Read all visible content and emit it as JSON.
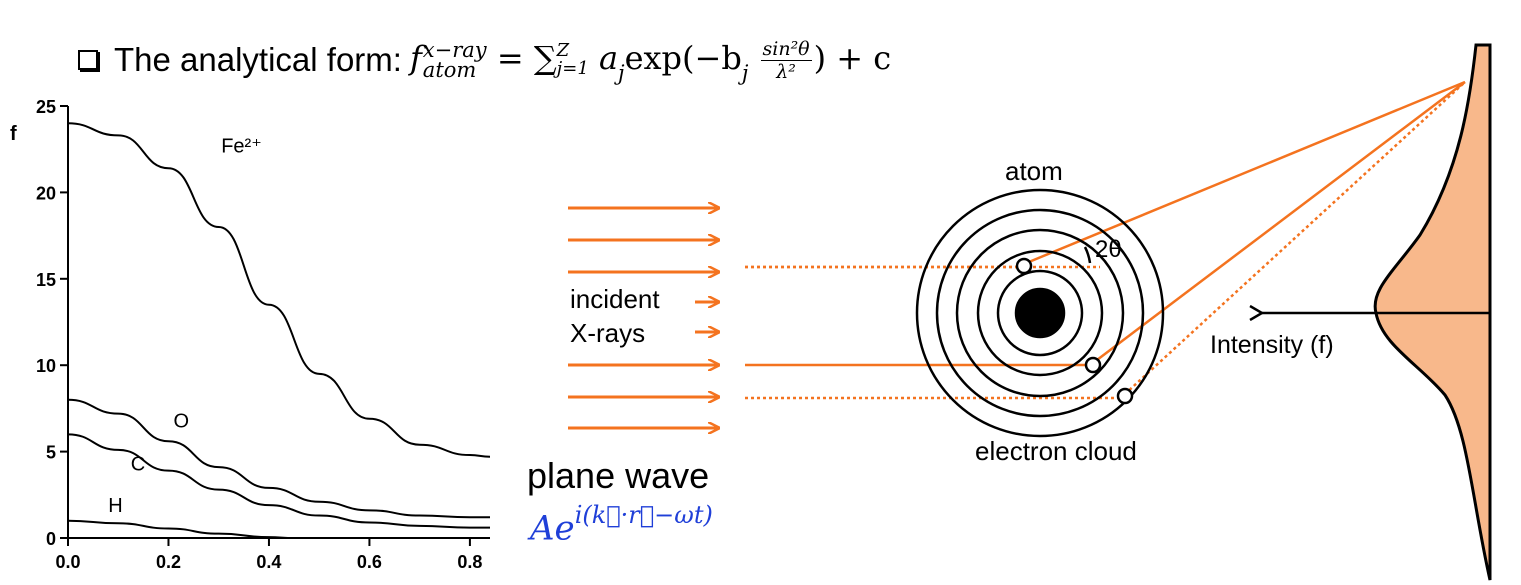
{
  "headline": {
    "text": "The analytical form:",
    "formula": {
      "f": "f",
      "superscript": "x−ray",
      "subscript": "atom",
      "equals_sum": "= ∑",
      "sum_sub": "j=1",
      "sum_sup": "Z",
      "a": "a",
      "a_sub": "j",
      "exp": "exp(−b",
      "b_sub": "j",
      "frac_num": "sin²θ",
      "frac_den": "λ²",
      "tail": ") + c"
    }
  },
  "chart_data": {
    "type": "line",
    "ylabel": "f",
    "xlabel": "",
    "xlim": [
      0,
      0.84
    ],
    "ylim": [
      0,
      25
    ],
    "x_ticks": [
      "0.0",
      "0.2",
      "0.4",
      "0.6",
      "0.8"
    ],
    "y_ticks": [
      "0",
      "5",
      "10",
      "15",
      "20",
      "25"
    ],
    "series": [
      {
        "name": "Fe²⁺",
        "x": [
          0,
          0.1,
          0.2,
          0.3,
          0.4,
          0.5,
          0.6,
          0.7,
          0.8,
          0.84
        ],
        "y": [
          24,
          23.3,
          21.4,
          18.0,
          13.5,
          9.5,
          6.9,
          5.4,
          4.8,
          4.7
        ]
      },
      {
        "name": "O",
        "x": [
          0,
          0.1,
          0.2,
          0.3,
          0.4,
          0.5,
          0.6,
          0.7,
          0.8,
          0.84
        ],
        "y": [
          8,
          7.2,
          5.6,
          4.1,
          2.9,
          2.1,
          1.6,
          1.3,
          1.2,
          1.2
        ]
      },
      {
        "name": "C",
        "x": [
          0,
          0.1,
          0.2,
          0.3,
          0.4,
          0.5,
          0.6,
          0.7,
          0.8,
          0.84
        ],
        "y": [
          6,
          5.1,
          3.9,
          2.8,
          1.9,
          1.3,
          0.9,
          0.7,
          0.6,
          0.6
        ]
      },
      {
        "name": "H",
        "x": [
          0,
          0.1,
          0.2,
          0.3,
          0.4,
          0.45
        ],
        "y": [
          1.0,
          0.85,
          0.55,
          0.25,
          0.05,
          0.0
        ]
      }
    ]
  },
  "diagram": {
    "incident_label_line1": "incident",
    "incident_label_line2": "X-rays",
    "atom_label": "atom",
    "angle_label": "2θ",
    "electron_cloud_label": "electron cloud",
    "intensity_label": "Intensity (f)",
    "plane_wave_label": "plane wave",
    "plane_wave_eq_base": "Ae",
    "plane_wave_eq_exp": "i(k⃗·r⃗−ωt)",
    "colors": {
      "ray": "#f4731f",
      "detector_fill": "#f8b88b",
      "eq": "#1f3fd8"
    }
  }
}
